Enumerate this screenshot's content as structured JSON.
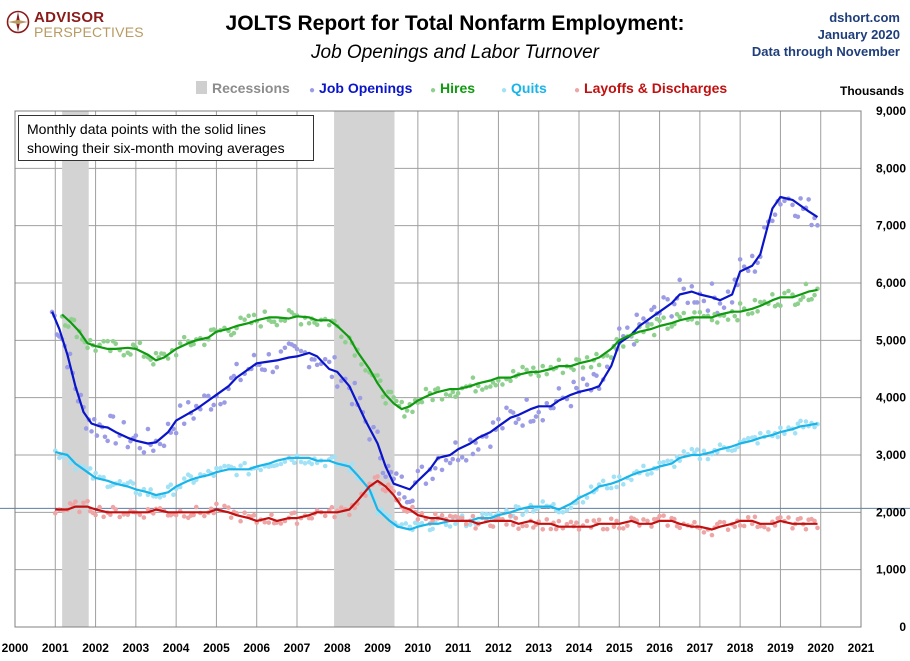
{
  "logo": {
    "line1": "ADVISOR",
    "line2": "PERSPECTIVES"
  },
  "title": "JOLTS Report for Total Nonfarm Employment:",
  "subtitle": "Job Openings and Labor Turnover",
  "source": {
    "site": "dshort.com",
    "date": "January 2020",
    "through": "Data through November"
  },
  "note": {
    "line1": "Monthly data points with the solid lines",
    "line2": "showing their six-month moving averages"
  },
  "units": "Thousands",
  "colors": {
    "recession": "#d3d3d3",
    "openings_line": "#0a14c8",
    "openings_dot": "#9c9ce6",
    "hires_line": "#0f9a0f",
    "hires_dot": "#8fd08f",
    "quits_line": "#19b4e8",
    "quits_dot": "#a2e1f6",
    "layoffs_line": "#c01010",
    "layoffs_dot": "#eea5a5",
    "reference_line": "#5b7ea6"
  },
  "chart_data": {
    "type": "line",
    "title": "JOLTS Report for Total Nonfarm Employment:",
    "subtitle": "Job Openings and Labor Turnover",
    "xlim": [
      2000,
      2021
    ],
    "ylim": [
      0,
      9000
    ],
    "x_ticks": [
      2000,
      2001,
      2002,
      2003,
      2004,
      2005,
      2006,
      2007,
      2008,
      2009,
      2010,
      2011,
      2012,
      2013,
      2014,
      2015,
      2016,
      2017,
      2018,
      2019,
      2020,
      2021
    ],
    "y_ticks": [
      0,
      1000,
      2000,
      3000,
      4000,
      5000,
      6000,
      7000,
      8000,
      9000
    ],
    "y_tick_labels": [
      "0",
      "1,000",
      "2,000",
      "3,000",
      "4,000",
      "5,000",
      "6,000",
      "7,000",
      "8,000",
      "9,000"
    ],
    "y_axis_side": "right",
    "grid": true,
    "legend_placement": "top",
    "reference_y": 2070,
    "recessions": [
      {
        "label": "Recessions",
        "start": 2001.17,
        "end": 2001.83
      },
      {
        "start": 2007.92,
        "end": 2009.42
      }
    ],
    "series": [
      {
        "name": "Job Openings",
        "x": [
          2000.92,
          2001.1,
          2001.3,
          2001.5,
          2001.7,
          2001.9,
          2002.1,
          2002.3,
          2002.5,
          2002.8,
          2003.0,
          2003.3,
          2003.5,
          2003.8,
          2004.0,
          2004.3,
          2004.5,
          2004.8,
          2005.0,
          2005.3,
          2005.5,
          2005.8,
          2006.0,
          2006.2,
          2006.5,
          2006.8,
          2007.0,
          2007.3,
          2007.5,
          2007.8,
          2008.0,
          2008.3,
          2008.5,
          2008.7,
          2009.0,
          2009.2,
          2009.4,
          2009.6,
          2009.8,
          2010.0,
          2010.3,
          2010.5,
          2010.8,
          2011.0,
          2011.3,
          2011.5,
          2011.8,
          2012.0,
          2012.3,
          2012.5,
          2012.8,
          2013.0,
          2013.3,
          2013.5,
          2013.8,
          2014.0,
          2014.3,
          2014.5,
          2014.8,
          2015.0,
          2015.3,
          2015.5,
          2015.8,
          2016.0,
          2016.3,
          2016.5,
          2016.8,
          2017.0,
          2017.3,
          2017.5,
          2017.8,
          2018.0,
          2018.3,
          2018.5,
          2018.8,
          2019.0,
          2019.3,
          2019.5,
          2019.7,
          2019.92
        ],
        "values": [
          5500,
          5200,
          4750,
          4200,
          3750,
          3550,
          3500,
          3480,
          3400,
          3300,
          3250,
          3200,
          3220,
          3400,
          3600,
          3720,
          3800,
          3950,
          4050,
          4200,
          4350,
          4500,
          4600,
          4620,
          4650,
          4700,
          4720,
          4780,
          4720,
          4500,
          4450,
          4200,
          3900,
          3600,
          3200,
          2800,
          2500,
          2450,
          2400,
          2550,
          2750,
          2950,
          3000,
          3100,
          3200,
          3300,
          3400,
          3500,
          3650,
          3700,
          3800,
          3850,
          3850,
          3950,
          4050,
          4100,
          4150,
          4200,
          4550,
          4950,
          5100,
          5250,
          5400,
          5500,
          5650,
          5800,
          5850,
          5800,
          5750,
          5700,
          5800,
          6200,
          6300,
          6500,
          7300,
          7500,
          7450,
          7350,
          7250,
          7150
        ]
      },
      {
        "name": "Hires",
        "x": [
          2001.17,
          2001.4,
          2001.6,
          2001.8,
          2002.0,
          2002.3,
          2002.5,
          2002.8,
          2003.0,
          2003.3,
          2003.5,
          2003.7,
          2004.0,
          2004.3,
          2004.5,
          2004.8,
          2005.0,
          2005.3,
          2005.5,
          2005.8,
          2006.0,
          2006.3,
          2006.5,
          2006.8,
          2007.0,
          2007.3,
          2007.5,
          2007.8,
          2008.0,
          2008.3,
          2008.5,
          2008.8,
          2009.0,
          2009.2,
          2009.4,
          2009.6,
          2009.8,
          2010.0,
          2010.3,
          2010.5,
          2010.8,
          2011.0,
          2011.3,
          2011.5,
          2011.8,
          2012.0,
          2012.3,
          2012.5,
          2012.8,
          2013.0,
          2013.3,
          2013.5,
          2013.8,
          2014.0,
          2014.3,
          2014.5,
          2014.8,
          2015.0,
          2015.3,
          2015.5,
          2015.8,
          2016.0,
          2016.3,
          2016.5,
          2016.8,
          2017.0,
          2017.3,
          2017.5,
          2017.8,
          2018.0,
          2018.3,
          2018.5,
          2018.8,
          2019.0,
          2019.3,
          2019.5,
          2019.7,
          2019.92
        ],
        "values": [
          5450,
          5300,
          5150,
          4950,
          4900,
          4850,
          4850,
          4870,
          4850,
          4750,
          4650,
          4700,
          4850,
          4950,
          5000,
          5050,
          5150,
          5200,
          5250,
          5300,
          5350,
          5400,
          5400,
          5380,
          5420,
          5400,
          5350,
          5350,
          5250,
          5050,
          4800,
          4500,
          4250,
          4050,
          3900,
          3800,
          3850,
          3950,
          4050,
          4100,
          4150,
          4150,
          4200,
          4250,
          4300,
          4350,
          4350,
          4400,
          4450,
          4450,
          4500,
          4550,
          4550,
          4600,
          4650,
          4700,
          4850,
          5000,
          5100,
          5150,
          5200,
          5250,
          5300,
          5350,
          5400,
          5400,
          5400,
          5450,
          5500,
          5500,
          5550,
          5600,
          5700,
          5750,
          5750,
          5800,
          5850,
          5880
        ]
      },
      {
        "name": "Quits",
        "x": [
          2001.0,
          2001.3,
          2001.5,
          2001.8,
          2002.0,
          2002.3,
          2002.5,
          2002.8,
          2003.0,
          2003.3,
          2003.5,
          2003.8,
          2004.0,
          2004.3,
          2004.5,
          2004.8,
          2005.0,
          2005.3,
          2005.5,
          2005.8,
          2006.0,
          2006.3,
          2006.5,
          2006.8,
          2007.0,
          2007.3,
          2007.5,
          2007.8,
          2008.0,
          2008.3,
          2008.5,
          2008.8,
          2009.0,
          2009.3,
          2009.5,
          2009.8,
          2010.0,
          2010.3,
          2010.5,
          2010.8,
          2011.0,
          2011.3,
          2011.5,
          2011.8,
          2012.0,
          2012.3,
          2012.5,
          2012.8,
          2013.0,
          2013.3,
          2013.5,
          2013.8,
          2014.0,
          2014.3,
          2014.5,
          2014.8,
          2015.0,
          2015.3,
          2015.5,
          2015.8,
          2016.0,
          2016.3,
          2016.5,
          2016.8,
          2017.0,
          2017.3,
          2017.5,
          2017.8,
          2018.0,
          2018.3,
          2018.5,
          2018.8,
          2019.0,
          2019.3,
          2019.5,
          2019.7,
          2019.92
        ],
        "values": [
          3050,
          3000,
          2850,
          2700,
          2600,
          2550,
          2500,
          2450,
          2400,
          2350,
          2300,
          2350,
          2450,
          2550,
          2600,
          2650,
          2700,
          2750,
          2750,
          2750,
          2800,
          2850,
          2900,
          2950,
          2950,
          2950,
          2900,
          2900,
          2850,
          2800,
          2650,
          2400,
          2050,
          1850,
          1750,
          1700,
          1750,
          1800,
          1800,
          1850,
          1850,
          1850,
          1900,
          1900,
          1950,
          2000,
          2050,
          2100,
          2100,
          2100,
          2050,
          2150,
          2250,
          2350,
          2450,
          2500,
          2550,
          2650,
          2700,
          2750,
          2800,
          2850,
          2950,
          3000,
          3000,
          3050,
          3100,
          3150,
          3200,
          3250,
          3300,
          3350,
          3400,
          3450,
          3500,
          3520,
          3550
        ]
      },
      {
        "name": "Layoffs & Discharges",
        "x": [
          2001.0,
          2001.3,
          2001.5,
          2001.8,
          2002.0,
          2002.3,
          2002.5,
          2002.8,
          2003.0,
          2003.3,
          2003.5,
          2003.8,
          2004.0,
          2004.3,
          2004.5,
          2004.8,
          2005.0,
          2005.3,
          2005.5,
          2005.8,
          2006.0,
          2006.3,
          2006.5,
          2006.8,
          2007.0,
          2007.3,
          2007.5,
          2007.8,
          2008.0,
          2008.3,
          2008.5,
          2008.8,
          2009.0,
          2009.2,
          2009.4,
          2009.6,
          2009.8,
          2010.0,
          2010.3,
          2010.5,
          2010.8,
          2011.0,
          2011.3,
          2011.5,
          2011.8,
          2012.0,
          2012.3,
          2012.5,
          2012.8,
          2013.0,
          2013.3,
          2013.5,
          2013.8,
          2014.0,
          2014.3,
          2014.5,
          2014.8,
          2015.0,
          2015.3,
          2015.5,
          2015.8,
          2016.0,
          2016.3,
          2016.5,
          2016.8,
          2017.0,
          2017.3,
          2017.5,
          2017.8,
          2018.0,
          2018.3,
          2018.5,
          2018.8,
          2019.0,
          2019.3,
          2019.5,
          2019.7,
          2019.92
        ],
        "values": [
          2050,
          2050,
          2100,
          2100,
          2050,
          2000,
          2000,
          2000,
          2000,
          2000,
          2050,
          2000,
          2000,
          2000,
          2000,
          2000,
          2050,
          2000,
          1950,
          1900,
          1850,
          1900,
          1850,
          1900,
          1900,
          1950,
          2000,
          2000,
          2000,
          2050,
          2200,
          2450,
          2550,
          2450,
          2300,
          2100,
          2050,
          1950,
          1900,
          1900,
          1850,
          1850,
          1850,
          1800,
          1850,
          1850,
          1850,
          1800,
          1850,
          1800,
          1800,
          1750,
          1750,
          1750,
          1750,
          1800,
          1800,
          1800,
          1850,
          1800,
          1800,
          1850,
          1850,
          1800,
          1750,
          1750,
          1700,
          1750,
          1800,
          1850,
          1850,
          1800,
          1800,
          1850,
          1800,
          1800,
          1800,
          1800
        ]
      }
    ],
    "x_tick_labels": [
      "2000",
      "2001",
      "2002",
      "2003",
      "2004",
      "2005",
      "2006",
      "2007",
      "2008",
      "2009",
      "2010",
      "2011",
      "2012",
      "2013",
      "2014",
      "2015",
      "2016",
      "2017",
      "2018",
      "2019",
      "2020",
      "2021"
    ]
  }
}
